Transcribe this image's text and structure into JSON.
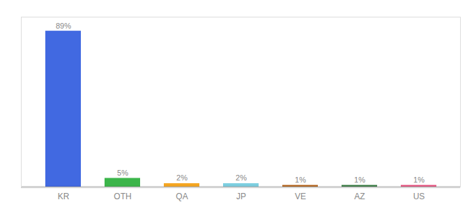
{
  "chart_data": {
    "type": "bar",
    "categories": [
      "KR",
      "OTH",
      "QA",
      "JP",
      "VE",
      "AZ",
      "US"
    ],
    "values": [
      89,
      5,
      2,
      2,
      1,
      1,
      1
    ],
    "value_labels": [
      "89%",
      "5%",
      "2%",
      "2%",
      "1%",
      "1%",
      "1%"
    ],
    "colors": [
      "#4169e1",
      "#3cb54a",
      "#f5a623",
      "#7ecfe0",
      "#b5651d",
      "#3a7d44",
      "#e75480"
    ],
    "ylim": [
      0,
      97
    ],
    "data_labels": true,
    "tick_labels": "x",
    "grid": false
  }
}
